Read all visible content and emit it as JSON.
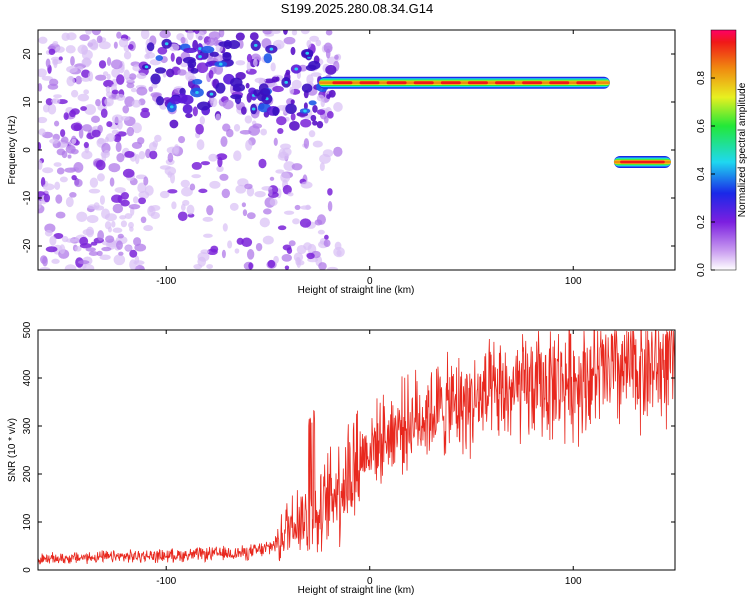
{
  "title": "S199.2025.280.08.34.G14",
  "chart_data": [
    {
      "type": "heatmap",
      "xlabel": "Height of straight line (km)",
      "ylabel": "Frequency (Hz)",
      "xlim": [
        -163,
        150
      ],
      "ylim": [
        -25,
        25
      ],
      "x_ticks": [
        -100,
        0,
        100
      ],
      "x_tick_labels": [
        "-100",
        "0",
        "100"
      ],
      "y_ticks": [
        -20,
        -10,
        0,
        10,
        20
      ],
      "y_tick_labels": [
        "-20",
        "-10",
        "0",
        "10",
        "20"
      ],
      "colorbar": {
        "label": "Normalized spectral amplitude",
        "range": [
          0,
          1
        ],
        "ticks": [
          0.0,
          0.2,
          0.4,
          0.6,
          0.8
        ],
        "tick_labels": [
          "0.0",
          "0.2",
          "0.4",
          "0.6",
          "0.8"
        ]
      },
      "features": [
        {
          "name": "main-track",
          "x_range": [
            -25,
            118
          ],
          "frequency_hz": 14,
          "amplitude": 0.95
        },
        {
          "name": "low-track",
          "x_range": [
            120,
            148
          ],
          "frequency_hz": -2.5,
          "amplitude": 0.9
        },
        {
          "name": "noise-region",
          "x_range": [
            -163,
            -25
          ],
          "frequency_range": [
            -25,
            25
          ],
          "amplitude": 0.3
        }
      ]
    },
    {
      "type": "line",
      "xlabel": "Height of straight line (km)",
      "ylabel": "SNR (10 * v/v)",
      "xlim": [
        -163,
        150
      ],
      "ylim": [
        0,
        500
      ],
      "x_ticks": [
        -100,
        0,
        100
      ],
      "x_tick_labels": [
        "-100",
        "0",
        "100"
      ],
      "y_ticks": [
        0,
        100,
        200,
        300,
        400,
        500
      ],
      "y_tick_labels": [
        "0",
        "100",
        "200",
        "300",
        "400",
        "500"
      ],
      "series": [
        {
          "name": "SNR",
          "color": "#e8281e",
          "x": [
            -163,
            -140,
            -120,
            -100,
            -80,
            -60,
            -50,
            -45,
            -40,
            -35,
            -30,
            -25,
            -20,
            -15,
            -10,
            -5,
            0,
            5,
            10,
            15,
            20,
            25,
            30,
            40,
            50,
            60,
            70,
            80,
            90,
            100,
            110,
            120,
            130,
            140,
            150
          ],
          "values": [
            22,
            26,
            28,
            30,
            33,
            36,
            45,
            60,
            90,
            120,
            95,
            105,
            150,
            180,
            200,
            235,
            255,
            270,
            285,
            300,
            310,
            320,
            330,
            340,
            350,
            360,
            370,
            380,
            390,
            395,
            405,
            410,
            420,
            425,
            430
          ]
        }
      ]
    }
  ]
}
